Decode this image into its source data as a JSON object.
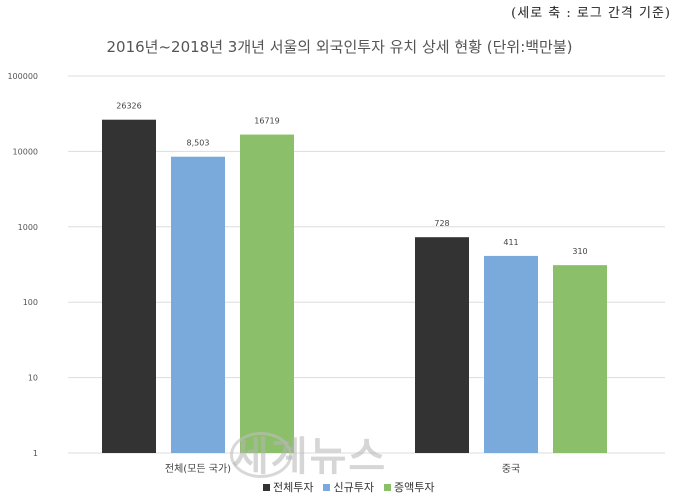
{
  "note": "(세로 축 : 로그 간격 기준)",
  "watermark": "세계뉴스",
  "chart_data": {
    "type": "bar",
    "title": "2016년~2018년 3개년 서울의 외국인투자 유치 상세 현황 (단위:백만불)",
    "categories": [
      "전체(모든 국가)",
      "중국"
    ],
    "series": [
      {
        "name": "전체투자",
        "values": [
          26326,
          728
        ],
        "labels": [
          "26326",
          "728"
        ],
        "color": "#333333"
      },
      {
        "name": "신규투자",
        "values": [
          8503,
          411
        ],
        "labels": [
          "8,503",
          "411"
        ],
        "color": "#7aaadb"
      },
      {
        "name": "증액투자",
        "values": [
          16719,
          310
        ],
        "labels": [
          "16719",
          "310"
        ],
        "color": "#8cbf6a"
      }
    ],
    "yscale": "log",
    "ylim": [
      1,
      100000
    ],
    "yticks": [
      "1",
      "10",
      "100",
      "1000",
      "10000",
      "100000"
    ],
    "grid": true,
    "legend": "bottom"
  }
}
